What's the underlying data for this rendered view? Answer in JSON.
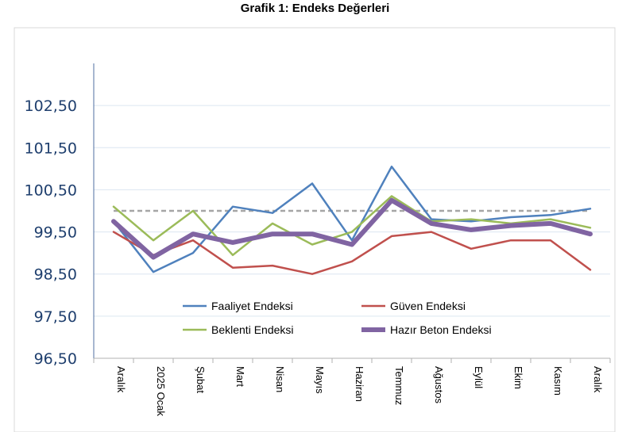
{
  "chart_data": {
    "type": "line",
    "title": "Grafik 1: Endeks Değerleri",
    "xlabel": "",
    "ylabel": "",
    "ylim": [
      96.5,
      103.5
    ],
    "yticks": [
      96.5,
      97.5,
      98.5,
      99.5,
      100.5,
      101.5,
      102.5
    ],
    "ytick_labels": [
      "96,50",
      "97,50",
      "98,50",
      "99,50",
      "100,50",
      "101,50",
      "102,50"
    ],
    "categories": [
      "Aralık",
      "2025 Ocak",
      "Şubat",
      "Mart",
      "Nisan",
      "Mayıs",
      "Haziran",
      "Temmuz",
      "Ağustos",
      "Eylül",
      "Ekim",
      "Kasım",
      "Aralık"
    ],
    "reference_line": 100.0,
    "grid": true,
    "legend_position": "bottom-center-inside",
    "series": [
      {
        "name": "Faaliyet Endeksi",
        "color": "#4f81bd",
        "values": [
          99.75,
          98.55,
          99.0,
          100.1,
          99.95,
          100.65,
          99.3,
          101.05,
          99.8,
          99.75,
          99.85,
          99.9,
          100.05
        ]
      },
      {
        "name": "Güven Endeksi",
        "color": "#c0504d",
        "values": [
          99.5,
          98.95,
          99.3,
          98.65,
          98.7,
          98.5,
          98.8,
          99.4,
          99.5,
          99.1,
          99.3,
          99.3,
          98.6
        ]
      },
      {
        "name": "Beklenti Endeksi",
        "color": "#9bbb59",
        "values": [
          100.1,
          99.3,
          100.0,
          98.95,
          99.7,
          99.2,
          99.5,
          100.35,
          99.75,
          99.8,
          99.7,
          99.8,
          99.6
        ]
      },
      {
        "name": "Hazır Beton Endeksi",
        "color": "#8064a2",
        "values": [
          99.75,
          98.9,
          99.45,
          99.25,
          99.45,
          99.45,
          99.2,
          100.25,
          99.7,
          99.55,
          99.65,
          99.7,
          99.45
        ]
      }
    ]
  }
}
